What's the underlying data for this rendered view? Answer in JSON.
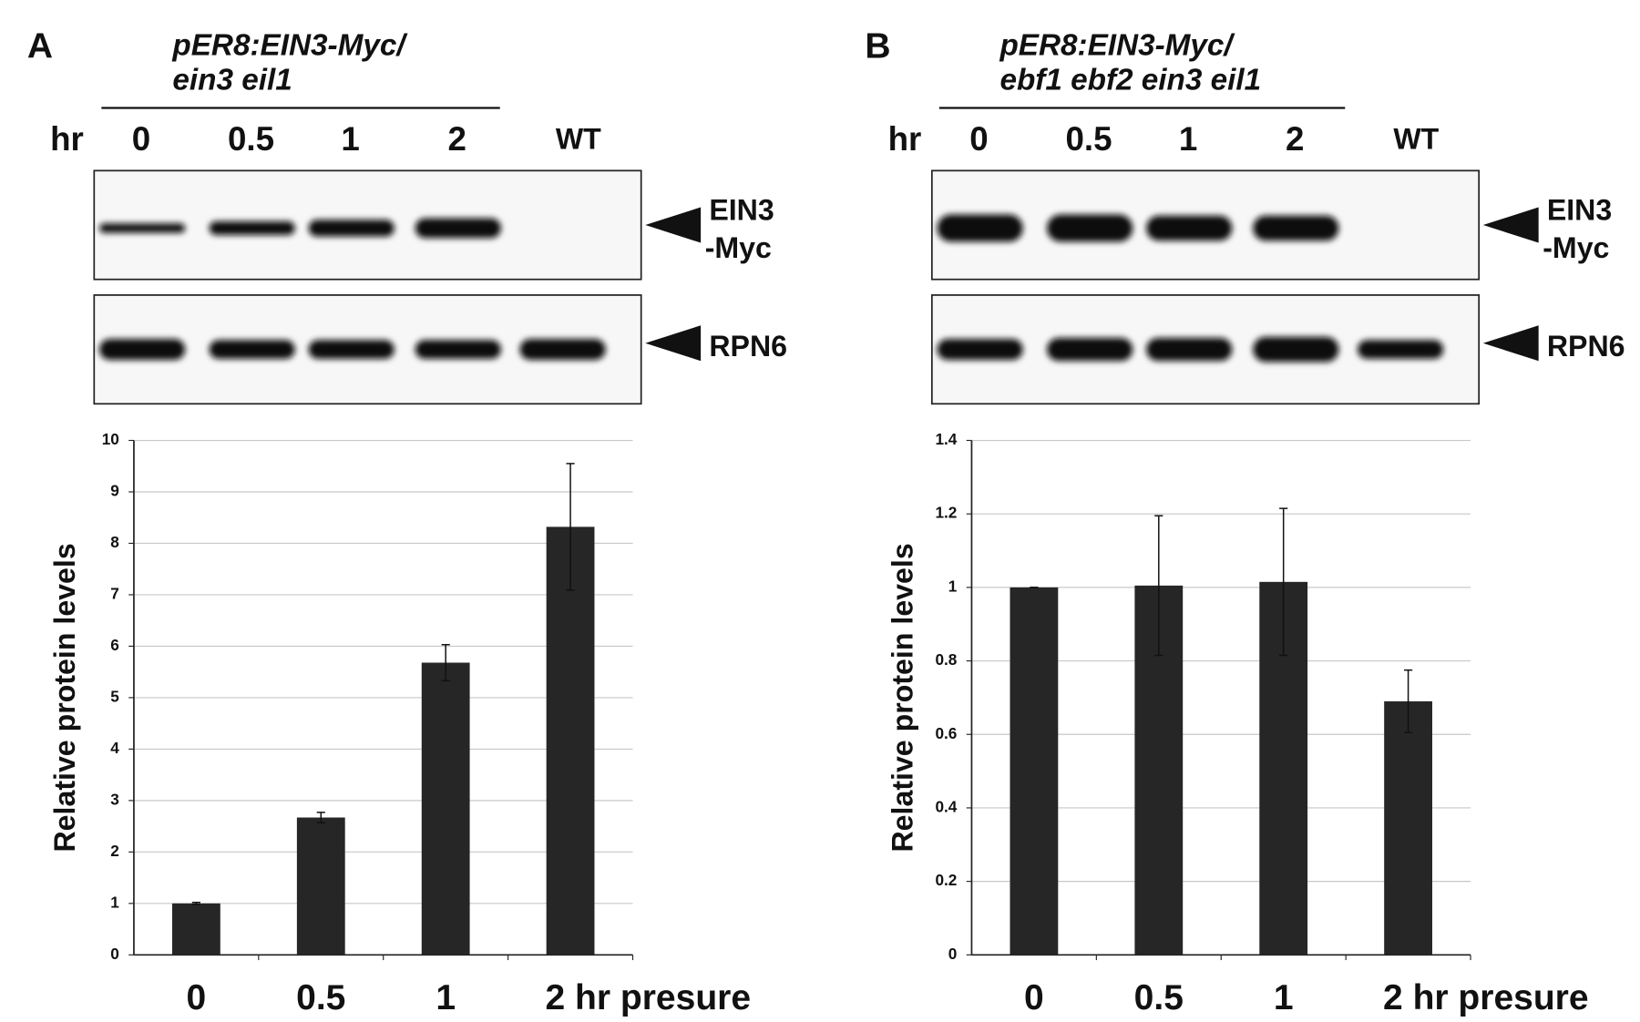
{
  "chart_data": [
    {
      "type": "bar",
      "panel": "A",
      "genotype": [
        "pER8:EIN3-Myc/",
        "ein3 eil1"
      ],
      "lane_header": "hr",
      "lanes": [
        "0",
        "0.5",
        "1",
        "2",
        "WT"
      ],
      "blot_labels": [
        [
          "EIN3",
          "-Myc"
        ],
        [
          "RPN6"
        ]
      ],
      "y_label": "Relative protein levels",
      "categories": [
        "0",
        "0.5",
        "1",
        "2 hr presure"
      ],
      "values": [
        1.0,
        2.67,
        5.68,
        8.32
      ],
      "errors": [
        0.02,
        0.1,
        0.35,
        1.23
      ],
      "color": "#262626",
      "ylim": [
        0,
        10
      ],
      "yticks": [
        0,
        1,
        2,
        3,
        4,
        5,
        6,
        7,
        8,
        9,
        10
      ],
      "grid": true
    },
    {
      "type": "bar",
      "panel": "B",
      "genotype": [
        "pER8:EIN3-Myc/",
        "ebf1 ebf2 ein3 eil1"
      ],
      "lane_header": "hr",
      "lanes": [
        "0",
        "0.5",
        "1",
        "2",
        "WT"
      ],
      "blot_labels": [
        [
          "EIN3",
          "-Myc"
        ],
        [
          "RPN6"
        ]
      ],
      "y_label": "Relative protein levels",
      "categories": [
        "0",
        "0.5",
        "1",
        "2 hr presure"
      ],
      "values": [
        1.0,
        1.005,
        1.015,
        0.69
      ],
      "errors": [
        0,
        0.19,
        0.2,
        0.085
      ],
      "color": "#262626",
      "ylim": [
        0,
        1.4
      ],
      "yticks": [
        0,
        0.2,
        0.4,
        0.6,
        0.8,
        1,
        1.2,
        1.4
      ],
      "grid": true
    }
  ]
}
